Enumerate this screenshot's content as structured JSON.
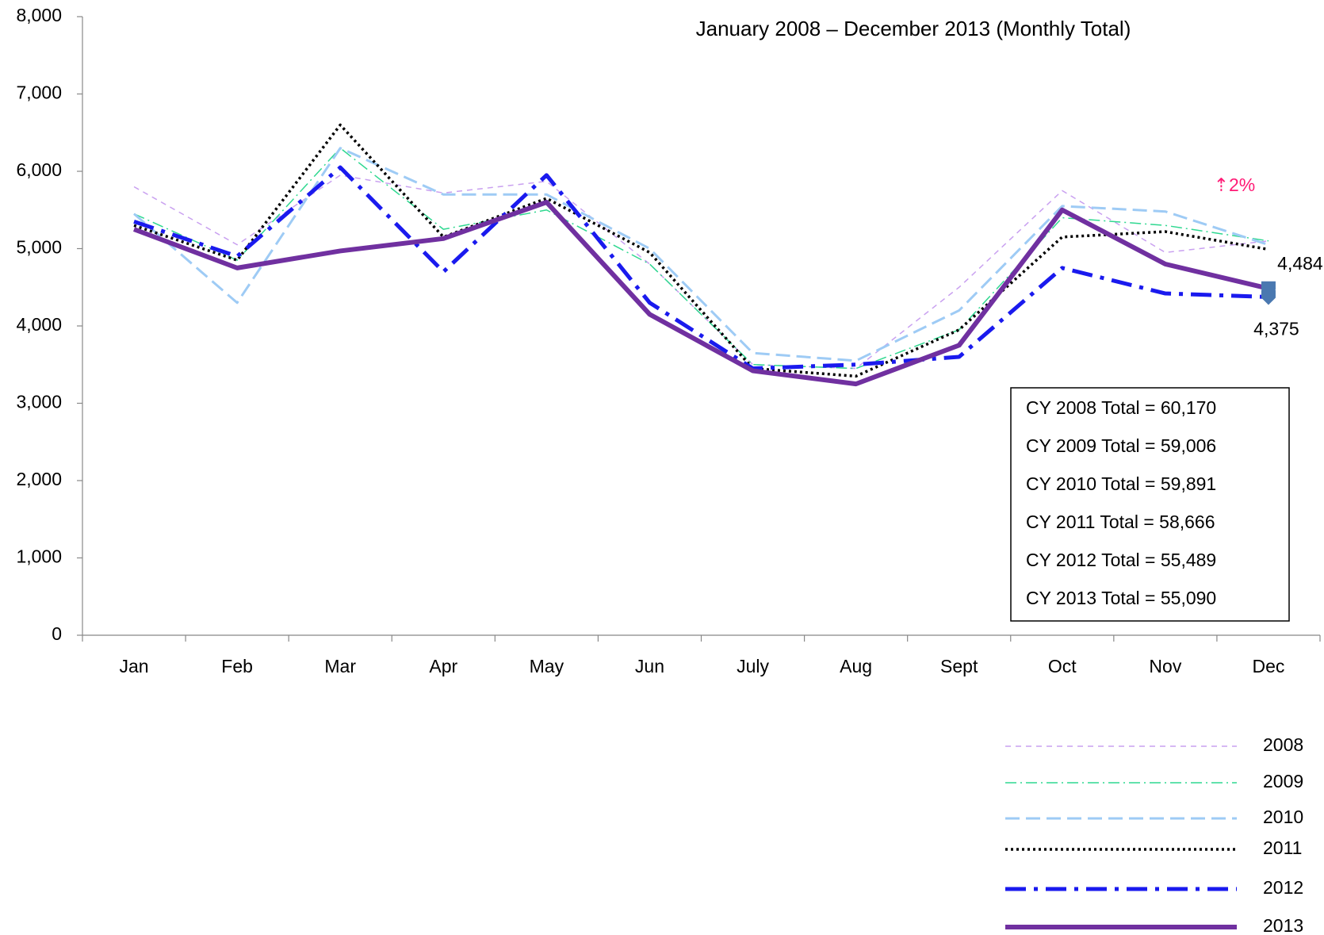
{
  "chart_data": {
    "type": "line",
    "title": "January 2008 – December 2013 (Monthly Total)",
    "categories": [
      "Jan",
      "Feb",
      "Mar",
      "Apr",
      "May",
      "Jun",
      "July",
      "Aug",
      "Sept",
      "Oct",
      "Nov",
      "Dec"
    ],
    "ylim": [
      0,
      8000
    ],
    "yticks": [
      0,
      {
        "value": 1000,
        "label": "1,000"
      },
      {
        "value": 2000,
        "label": "2,000"
      },
      {
        "value": 3000,
        "label": "3,000"
      },
      {
        "value": 4000,
        "label": "4,000"
      },
      {
        "value": 5000,
        "label": "5,000"
      },
      {
        "value": 6000,
        "label": "6,000"
      },
      {
        "value": 7000,
        "label": "7,000"
      },
      {
        "value": 8000,
        "label": "8,000"
      }
    ],
    "grid": false,
    "legend": "bottom-right",
    "series": [
      {
        "name": "2008",
        "color": "#c9a0f0",
        "style": "dashed-thin",
        "values": [
          5800,
          5050,
          5950,
          5720,
          5870,
          4800,
          3500,
          3450,
          4500,
          5750,
          4950,
          5100
        ]
      },
      {
        "name": "2009",
        "color": "#2fd890",
        "style": "dash-dot-thin",
        "values": [
          5450,
          4850,
          6300,
          5250,
          5500,
          4800,
          3500,
          3450,
          3950,
          5400,
          5300,
          5100
        ]
      },
      {
        "name": "2010",
        "color": "#9ecbf5",
        "style": "dashed",
        "values": [
          5450,
          4300,
          6300,
          5700,
          5700,
          5000,
          3650,
          3550,
          4200,
          5550,
          5480,
          5050
        ]
      },
      {
        "name": "2011",
        "color": "#000000",
        "style": "dotted",
        "values": [
          5300,
          4850,
          6600,
          5150,
          5650,
          4950,
          3450,
          3350,
          3950,
          5150,
          5220,
          4990
        ]
      },
      {
        "name": "2012",
        "color": "#1a1aee",
        "style": "dash-dot-thick",
        "values": [
          5350,
          4900,
          6050,
          4700,
          5950,
          4300,
          3450,
          3500,
          3600,
          4750,
          4420,
          4375
        ],
        "value_labels": [
          null,
          null,
          null,
          null,
          null,
          null,
          null,
          null,
          null,
          null,
          null,
          "4,375"
        ]
      },
      {
        "name": "2013",
        "color": "#7030a0",
        "style": "solid-thick",
        "values": [
          5250,
          4750,
          4970,
          5130,
          5600,
          4150,
          3420,
          3250,
          3750,
          5500,
          4800,
          4484
        ],
        "value_labels": [
          null,
          null,
          null,
          null,
          null,
          null,
          null,
          null,
          null,
          null,
          null,
          "4,484"
        ]
      }
    ],
    "annotations": {
      "change": "⇡2%",
      "totals": [
        "CY 2008 Total = 60,170",
        "CY 2009 Total = 59,006",
        "CY 2010 Total = 59,891",
        "CY 2011 Total = 58,666",
        "CY 2012 Total = 55,489",
        "CY 2013 Total = 55,090"
      ]
    }
  }
}
